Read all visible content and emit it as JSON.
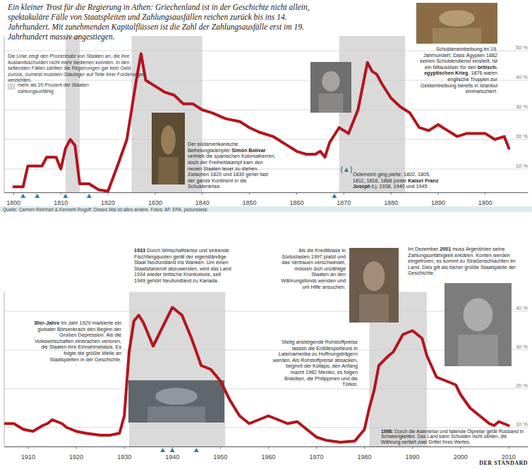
{
  "chart_data": [
    {
      "type": "line",
      "title": "Ein kleiner Trost für die Regierung in Athen: Griechenland ist in der Geschichte nicht allein, spektakuläre Fälle von Staatspleiten und Zahlungsausfällen reichen zurück bis ins 14. Jahrhundert. Mit zunehmenden Kapitalflüssen ist die Zahl der Zahlungsausfälle erst im 19. Jahrhundert massiv angestiegen.",
      "subtitle": "Die Linie zeigt den Prozentsatz von Staaten an, die ihre Auslandsschulden nicht mehr bedienen konnten. In den seltensten Fällen zahlten die Regierungen gar kein Geld zurück, zumeist mussten Gläubiger auf Teile ihrer Forderungen verzichten.",
      "band_label": "mehr als 20 Prozent der Staaten zahlungsunfähig",
      "bands": [
        {
          "from": 1811,
          "to": 1814
        },
        {
          "from": 1825,
          "to": 1840
        },
        {
          "from": 1869,
          "to": 1883
        }
      ],
      "markers": [
        1802,
        1805,
        1811,
        1816,
        1868
      ],
      "x": [
        1800,
        1802,
        1803,
        1806,
        1807,
        1809,
        1810,
        1811,
        1812,
        1813,
        1814,
        1816,
        1818,
        1820,
        1822,
        1824,
        1826,
        1827,
        1828,
        1830,
        1832,
        1834,
        1836,
        1838,
        1840,
        1842,
        1845,
        1848,
        1850,
        1852,
        1855,
        1858,
        1860,
        1862,
        1864,
        1865,
        1866,
        1867,
        1869,
        1870,
        1871,
        1873,
        1875,
        1876,
        1877,
        1878,
        1880,
        1882,
        1884,
        1886,
        1888,
        1890,
        1892,
        1894,
        1896,
        1898,
        1900,
        1902,
        1904,
        1905
      ],
      "values": [
        4,
        4,
        11,
        11,
        14,
        14,
        10,
        17,
        20,
        18,
        5,
        5,
        3,
        2.5,
        11,
        20,
        40,
        49,
        40,
        38,
        36,
        35,
        32,
        32,
        30,
        29,
        27,
        26,
        24,
        22.5,
        21,
        18,
        16,
        15,
        15,
        16,
        14,
        19,
        24,
        23,
        22,
        30,
        46,
        43,
        42,
        39,
        34,
        31,
        29,
        24,
        23,
        25,
        23,
        21,
        22,
        22,
        22,
        20,
        21,
        17
      ],
      "color": "#b3151d",
      "xlim": [
        1798,
        1909
      ],
      "xticks": [
        1800,
        1810,
        1820,
        1830,
        1840,
        1850,
        1860,
        1870,
        1880,
        1890,
        1900
      ],
      "ylim": [
        2,
        55
      ],
      "yticks": [
        {
          "value": 10,
          "label": "10 %"
        },
        {
          "value": 20,
          "label": "20 %"
        },
        {
          "value": 30,
          "label": "30 %"
        },
        {
          "value": 40,
          "label": "40 %"
        },
        {
          "value": 50,
          "label": "50 %"
        }
      ],
      "grid": true,
      "annotations": [
        {
          "parts": [
            "Der südamerikanische Befreiungskämpfer ",
            "Simón Bolívar",
            " vertrieb die spanischen Kolonialherren, doch der Freiheitskampf kam den neuen Staaten teuer zu stehen. Zwischen 1820 und 1830 geriet fast der ganze Kontinent in die Schuldenkrise."
          ]
        },
        {
          "parts": [
            "Österreich ging pleite: 1802, 1805, 1811, 1816, 1868 (unter ",
            "Kaiser Franz Joseph I.",
            "), 1938, 1940 und 1945"
          ]
        },
        {
          "parts": [
            "Schuldeneintreibung im 19. Jahrhundert: Dass Ägypten 1882 seinen Schuldendienst einstellt, ist ein Mitauslöser für den ",
            "britisch-egyptischen Krieg",
            ". 1876 waren englische Truppen zur Geldeintreibung bereits in Istanbul einmarschiert."
          ]
        }
      ],
      "source": "Quelle: Carmen Reinhart & Kenneth Rogoff: Dieses Mal ist alles anders. Fotos: AP, EPA, picturedesk"
    },
    {
      "type": "line",
      "bands": [
        {
          "from": 1931,
          "to": 1951
        },
        {
          "from": 1981,
          "to": 1993
        }
      ],
      "markers": [
        1938,
        1940,
        1945
      ],
      "x": [
        1905,
        1907,
        1909,
        1911,
        1913,
        1914,
        1915,
        1917,
        1918,
        1920,
        1922,
        1925,
        1927,
        1929,
        1930,
        1931,
        1932,
        1933,
        1934,
        1936,
        1938,
        1940,
        1942,
        1944,
        1946,
        1948,
        1950,
        1952,
        1954,
        1956,
        1958,
        1960,
        1962,
        1964,
        1966,
        1968,
        1970,
        1972,
        1975,
        1978,
        1980,
        1981,
        1982,
        1983,
        1985,
        1986,
        1988,
        1990,
        1992,
        1993,
        1995,
        1997,
        1999,
        2000,
        2002,
        2004,
        2006,
        2007,
        2008,
        2010
      ],
      "values": [
        11,
        11,
        9.5,
        9,
        10.5,
        11,
        12,
        11,
        10,
        9,
        8.5,
        8,
        8,
        8.5,
        13,
        29.5,
        37.5,
        39,
        37,
        31,
        36,
        41,
        39,
        33,
        26,
        25,
        22,
        17,
        13,
        11,
        12,
        13,
        12,
        11,
        11.5,
        9.5,
        7.5,
        6.7,
        6.2,
        6.5,
        9.5,
        15,
        19.5,
        26,
        28.5,
        29.5,
        34,
        35,
        33,
        28.5,
        23,
        22,
        21,
        18.5,
        15,
        13,
        11,
        10.5,
        11.5,
        10.5
      ],
      "color": "#b3151d",
      "xlim": [
        1905,
        2014
      ],
      "xticks": [
        1910,
        1920,
        1930,
        1940,
        1950,
        1960,
        1970,
        1980,
        1990,
        2000,
        2010
      ],
      "ylim": [
        5,
        45
      ],
      "yticks": [
        {
          "value": 10,
          "label": "10 %"
        },
        {
          "value": 20,
          "label": "20 %"
        },
        {
          "value": 30,
          "label": "30 %"
        },
        {
          "value": 40,
          "label": "40 %"
        }
      ],
      "grid": true,
      "annotations": [
        {
          "parts": [
            "1933",
            " Durch Wirtschaftskrise und sinkende Fischfangquoten gerät der eigenständige Staat Neufundland ins Wanken. Um einen Staatsbankrott abzuwenden, wird das Land 1934 wieder britische Kronkolonie, seit 1949 gehört Neufundland zu Kanada."
          ]
        },
        {
          "parts": [
            "30er-Jahre",
            " Im Jahr 1929 markierte ein globaler Börsenkrach den Beginn der Großen Depression. Als die Volkswirtschaften einbrachen verloren, die Staaten ihre Einnahmebasis. Es folgte die größte Welle an Staatspleiten in der Geschichte."
          ]
        },
        {
          "parts": [
            "Als die Kreditblase in Südostasien 1997 platzt und das Vertrauen verschwindet, müssen sich unzählige Staaten an den Währungsfonds wenden und um Hilfe ansuchen."
          ]
        },
        {
          "parts": [
            "Stetig ansteigende Rohstoffpreise lassen die Erdölexporteure in Lateinamerika zu Hoffnungsträgern werden. Als Rohstoffpreise absacken, beginnt der Kollaps, den Anfang macht 1982 Mexiko, es folgen Brasilien, die Philippinen und die Türkei."
          ]
        },
        {
          "parts": [
            "Im Dezember ",
            "2001",
            " muss Argentinien seine Zahlungsunfähigkeit erklären. Konten werden eingefroren, es kommt zu Straßenschlachten im Land. Dies gilt als bisher größte Staatspleite der Geschichte."
          ]
        },
        {
          "parts": [
            "1998:",
            " Durch die Asienkrise und fallende Ölpreise gerät Russland in Schwierigkeiten. Das Land kann Schulden nicht zahlen, die Währung verliert zwei Drittel ihres Wertes."
          ]
        }
      ],
      "credit": "DER STANDARD"
    }
  ]
}
